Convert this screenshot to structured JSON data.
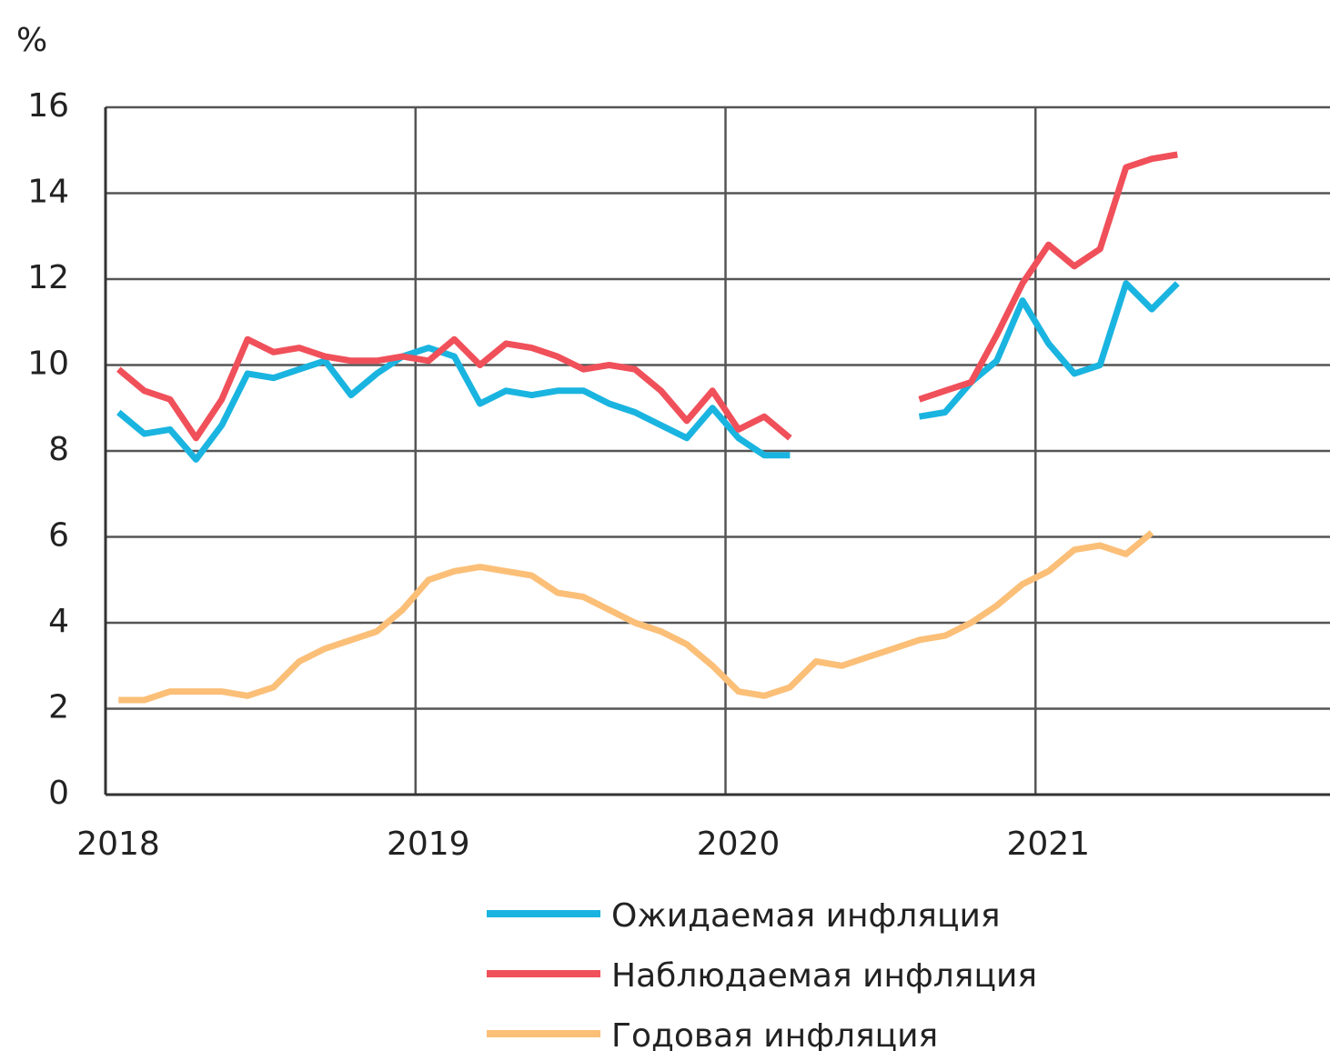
{
  "chart_data": {
    "type": "line",
    "y_label": "%",
    "x": [
      2018.042,
      2018.125,
      2018.208,
      2018.292,
      2018.375,
      2018.458,
      2018.542,
      2018.625,
      2018.708,
      2018.792,
      2018.875,
      2018.958,
      2019.042,
      2019.125,
      2019.208,
      2019.292,
      2019.375,
      2019.458,
      2019.542,
      2019.625,
      2019.708,
      2019.792,
      2019.875,
      2019.958,
      2020.042,
      2020.125,
      2020.208,
      2020.292,
      2020.375,
      2020.458,
      2020.542,
      2020.625,
      2020.708,
      2020.792,
      2020.875,
      2020.958,
      2021.042,
      2021.125,
      2021.208,
      2021.292,
      2021.375,
      2021.458
    ],
    "series": [
      {
        "name": "Ожидаемая инфляция",
        "color": "#1ab4e0",
        "values": [
          8.9,
          8.4,
          8.5,
          7.8,
          8.6,
          9.8,
          9.7,
          9.9,
          10.1,
          9.3,
          9.8,
          10.2,
          10.4,
          10.2,
          9.1,
          9.4,
          9.3,
          9.4,
          9.4,
          9.1,
          8.9,
          8.6,
          8.3,
          9.0,
          8.3,
          7.9,
          7.9,
          null,
          null,
          null,
          null,
          8.8,
          8.9,
          9.6,
          10.1,
          11.5,
          10.5,
          9.8,
          10.0,
          11.9,
          11.3,
          11.9
        ]
      },
      {
        "name": "Наблюдаемая  инфляция",
        "color": "#f0505a",
        "values": [
          9.9,
          9.4,
          9.2,
          8.3,
          9.2,
          10.6,
          10.3,
          10.4,
          10.2,
          10.1,
          10.1,
          10.2,
          10.1,
          10.6,
          10.0,
          10.5,
          10.4,
          10.2,
          9.9,
          10.0,
          9.9,
          9.4,
          8.7,
          9.4,
          8.5,
          8.8,
          8.3,
          null,
          null,
          null,
          null,
          9.2,
          9.4,
          9.6,
          10.7,
          11.9,
          12.8,
          12.3,
          12.7,
          14.6,
          14.8,
          14.9
        ]
      },
      {
        "name": "Годовая инфляция",
        "color": "#fbbf78",
        "values": [
          2.2,
          2.2,
          2.4,
          2.4,
          2.4,
          2.3,
          2.5,
          3.1,
          3.4,
          3.6,
          3.8,
          4.3,
          5.0,
          5.2,
          5.3,
          5.2,
          5.1,
          4.7,
          4.6,
          4.3,
          4.0,
          3.8,
          3.5,
          3.0,
          2.4,
          2.3,
          2.5,
          3.1,
          3.0,
          3.2,
          3.4,
          3.6,
          3.7,
          4.0,
          4.4,
          4.9,
          5.2,
          5.7,
          5.8,
          5.6,
          6.1,
          null
        ]
      }
    ],
    "xlim": [
      2018,
      2021.95
    ],
    "xticks": [
      2018,
      2019,
      2020,
      2021
    ],
    "ylim": [
      0,
      16
    ],
    "yticks": [
      0,
      2,
      4,
      6,
      8,
      10,
      12,
      14,
      16
    ],
    "grid": true,
    "legend": "bottom"
  }
}
